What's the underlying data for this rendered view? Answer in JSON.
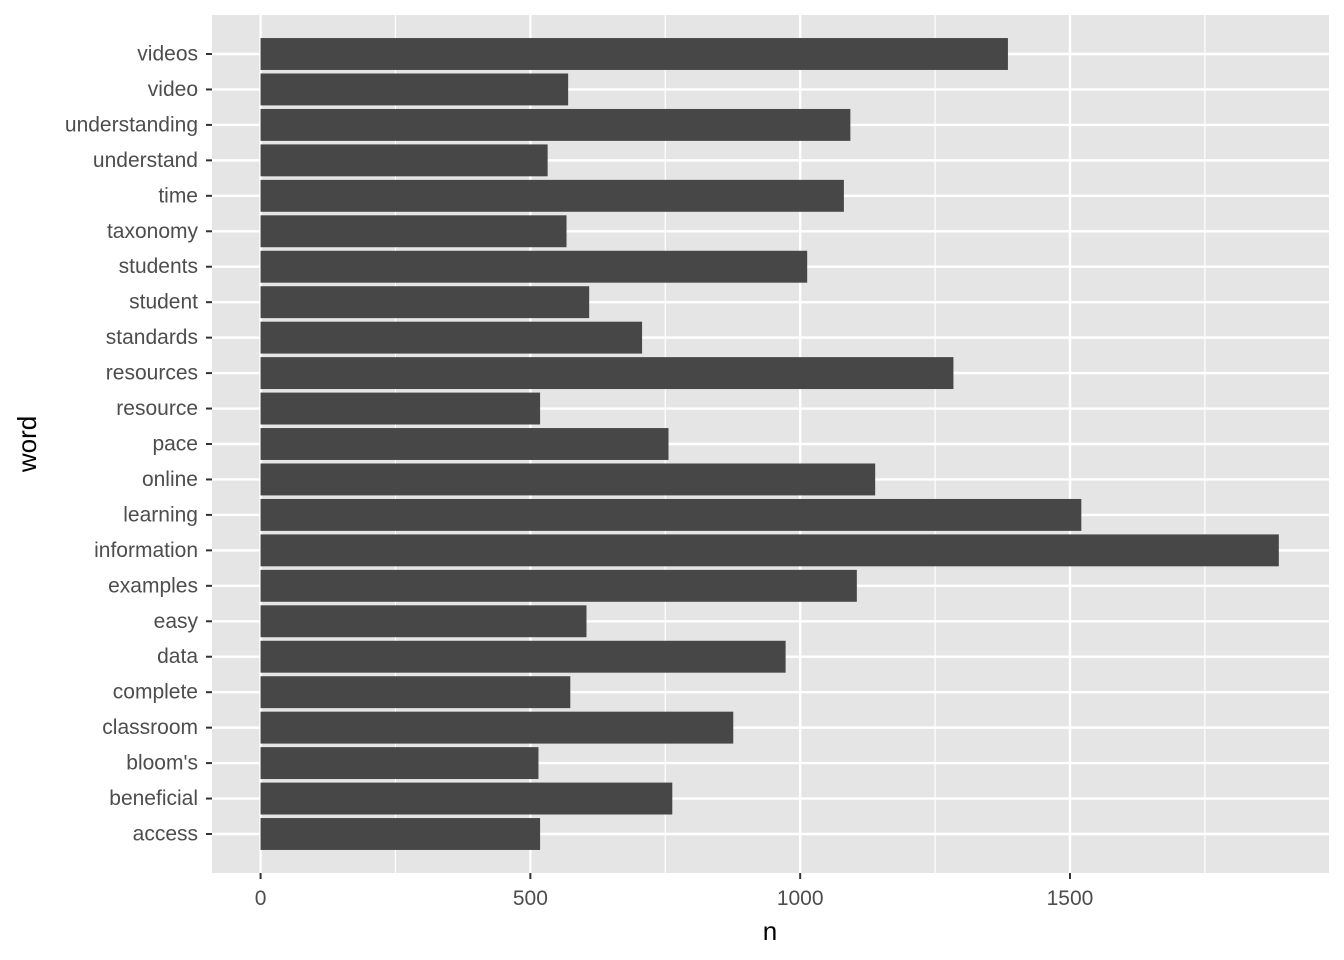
{
  "chart_data": {
    "type": "bar",
    "orientation": "horizontal",
    "xlabel": "n",
    "ylabel": "word",
    "xlim": [
      -90,
      1980
    ],
    "xticks": [
      0,
      500,
      1000,
      1500
    ],
    "x_minor_ticks": [
      250,
      750,
      1250,
      1750
    ],
    "grid": true,
    "colors": {
      "panel": "#e5e5e5",
      "bar": "#474747",
      "grid": "#ffffff",
      "tick_text": "#4d4d4d",
      "axis_title": "#000000"
    },
    "categories": [
      "videos",
      "video",
      "understanding",
      "understand",
      "time",
      "taxonomy",
      "students",
      "student",
      "standards",
      "resources",
      "resource",
      "pace",
      "online",
      "learning",
      "information",
      "examples",
      "easy",
      "data",
      "complete",
      "classroom",
      "bloom's",
      "beneficial",
      "access"
    ],
    "values": [
      1385,
      570,
      1093,
      532,
      1081,
      567,
      1013,
      609,
      707,
      1284,
      518,
      756,
      1139,
      1521,
      1887,
      1105,
      604,
      973,
      574,
      876,
      515,
      763,
      518
    ]
  }
}
